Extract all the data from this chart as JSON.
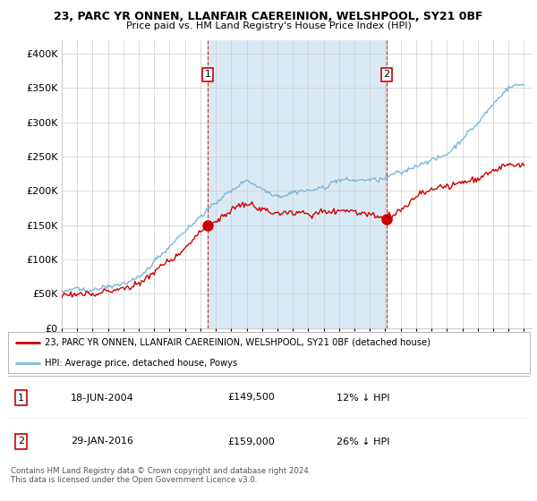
{
  "title": "23, PARC YR ONNEN, LLANFAIR CAEREINION, WELSHPOOL, SY21 0BF",
  "subtitle": "Price paid vs. HM Land Registry's House Price Index (HPI)",
  "ytick_values": [
    0,
    50000,
    100000,
    150000,
    200000,
    250000,
    300000,
    350000,
    400000
  ],
  "ylim": [
    0,
    420000
  ],
  "xlim_start": 1995.0,
  "xlim_end": 2025.5,
  "hpi_color": "#7ab8d9",
  "price_color": "#cc0000",
  "marker_color": "#cc0000",
  "grid_color": "#cccccc",
  "shade_color": "#daeaf5",
  "background_color": "#ffffff",
  "sale1_x": 2004.46,
  "sale1_y": 149500,
  "sale1_label": "1",
  "sale1_date": "18-JUN-2004",
  "sale1_price": "£149,500",
  "sale1_hpi": "12% ↓ HPI",
  "sale2_x": 2016.08,
  "sale2_y": 159000,
  "sale2_label": "2",
  "sale2_date": "29-JAN-2016",
  "sale2_price": "£159,000",
  "sale2_hpi": "26% ↓ HPI",
  "legend_line1": "23, PARC YR ONNEN, LLANFAIR CAEREINION, WELSHPOOL, SY21 0BF (detached house)",
  "legend_line2": "HPI: Average price, detached house, Powys",
  "footer": "Contains HM Land Registry data © Crown copyright and database right 2024.\nThis data is licensed under the Open Government Licence v3.0.",
  "vline_color": "#cc0000"
}
